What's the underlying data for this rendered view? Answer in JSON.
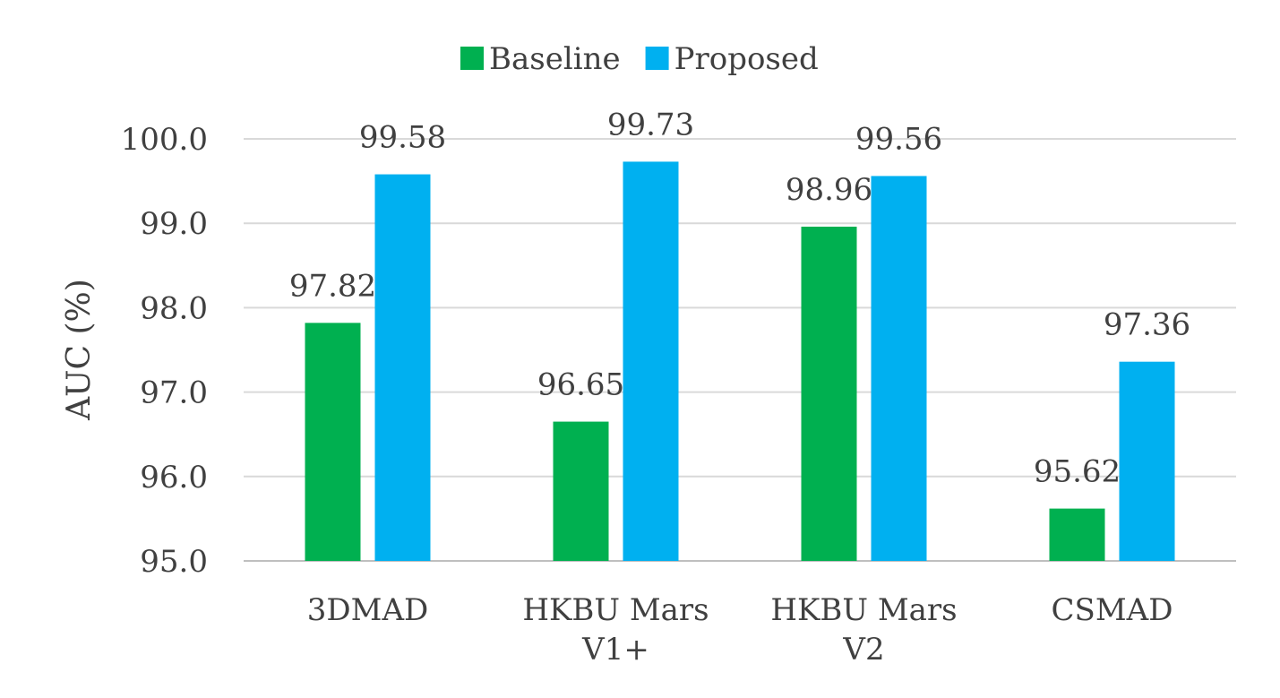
{
  "chart_data": {
    "type": "bar",
    "title": "",
    "xlabel": "",
    "ylabel": "AUC (%)",
    "ylim": [
      95.0,
      100.0
    ],
    "yticks": [
      "95.0",
      "96.0",
      "97.0",
      "98.0",
      "99.0",
      "100.0"
    ],
    "grid": true,
    "legend_position": "top-center",
    "categories": [
      [
        "3DMAD"
      ],
      [
        "HKBU Mars",
        "V1+"
      ],
      [
        "HKBU Mars",
        "V2"
      ],
      [
        "CSMAD"
      ]
    ],
    "series": [
      {
        "name": "Baseline",
        "color": "#00b050",
        "values": [
          97.82,
          96.65,
          98.96,
          95.62
        ]
      },
      {
        "name": "Proposed",
        "color": "#00b0f0",
        "values": [
          99.58,
          99.73,
          99.56,
          97.36
        ]
      }
    ]
  }
}
